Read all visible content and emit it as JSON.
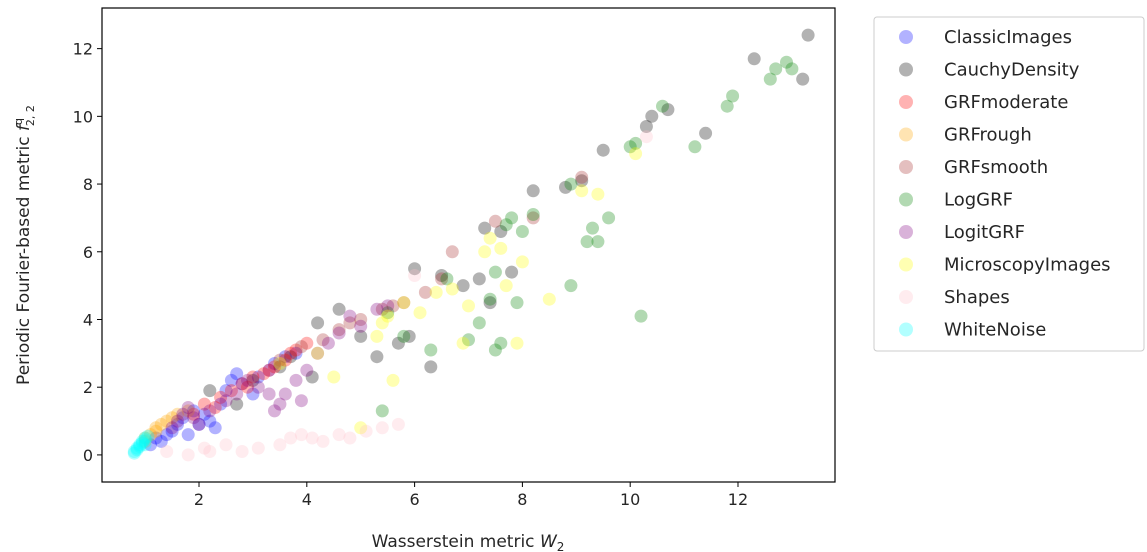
{
  "chart_data": {
    "type": "scatter",
    "xlabel_text": "Wasserstein metric ",
    "xlabel_symbol": "W",
    "xlabel_sub": "2",
    "ylabel_text": "Periodic Fourier-based metric ",
    "ylabel_symbol": "f",
    "ylabel_sup": "q",
    "ylabel_sub": "2, 2",
    "xlim": [
      0.2,
      13.8
    ],
    "ylim": [
      -0.8,
      13.2
    ],
    "xticks": [
      2,
      4,
      6,
      8,
      10,
      12
    ],
    "yticks": [
      0,
      2,
      4,
      6,
      8,
      10,
      12
    ],
    "xtick_labels": [
      "2",
      "4",
      "6",
      "8",
      "10",
      "12"
    ],
    "ytick_labels": [
      "0",
      "2",
      "4",
      "6",
      "8",
      "10",
      "12"
    ],
    "legend_position": "outside-right",
    "marker_alpha": 0.3,
    "series": [
      {
        "name": "ClassicImages",
        "color": "#0000ff",
        "points": [
          [
            1.1,
            0.3
          ],
          [
            1.2,
            0.5
          ],
          [
            1.3,
            0.4
          ],
          [
            1.5,
            0.7
          ],
          [
            1.6,
            0.9
          ],
          [
            1.7,
            1.1
          ],
          [
            1.8,
            0.6
          ],
          [
            1.9,
            1.3
          ],
          [
            2.0,
            0.9
          ],
          [
            2.1,
            1.2
          ],
          [
            2.3,
            0.8
          ],
          [
            2.4,
            1.5
          ],
          [
            2.5,
            1.9
          ],
          [
            2.6,
            2.2
          ],
          [
            2.7,
            2.4
          ],
          [
            2.8,
            2.1
          ],
          [
            3.0,
            1.8
          ],
          [
            3.1,
            2.3
          ],
          [
            3.3,
            2.5
          ],
          [
            3.4,
            2.7
          ],
          [
            3.6,
            2.9
          ],
          [
            3.8,
            3.0
          ],
          [
            2.2,
            1.0
          ],
          [
            1.4,
            0.6
          ]
        ]
      },
      {
        "name": "CauchyDensity",
        "color": "#000000",
        "points": [
          [
            2.2,
            1.9
          ],
          [
            2.7,
            1.5
          ],
          [
            3.0,
            2.2
          ],
          [
            3.5,
            2.6
          ],
          [
            3.7,
            2.9
          ],
          [
            4.1,
            2.3
          ],
          [
            4.2,
            3.9
          ],
          [
            4.6,
            4.3
          ],
          [
            5.0,
            3.5
          ],
          [
            5.3,
            2.9
          ],
          [
            5.7,
            3.3
          ],
          [
            5.9,
            3.5
          ],
          [
            6.0,
            5.5
          ],
          [
            6.3,
            2.6
          ],
          [
            6.5,
            5.3
          ],
          [
            6.9,
            5.0
          ],
          [
            7.2,
            5.2
          ],
          [
            7.3,
            6.7
          ],
          [
            7.4,
            4.5
          ],
          [
            7.6,
            6.6
          ],
          [
            7.8,
            5.4
          ],
          [
            8.2,
            7.8
          ],
          [
            8.8,
            7.9
          ],
          [
            9.1,
            8.1
          ],
          [
            9.5,
            9.0
          ],
          [
            10.3,
            9.7
          ],
          [
            10.4,
            10.0
          ],
          [
            10.7,
            10.2
          ],
          [
            11.4,
            9.5
          ],
          [
            12.3,
            11.7
          ],
          [
            13.2,
            11.1
          ],
          [
            13.3,
            12.4
          ]
        ]
      },
      {
        "name": "GRFmoderate",
        "color": "#ff0000",
        "points": [
          [
            1.9,
            1.2
          ],
          [
            2.1,
            1.5
          ],
          [
            2.4,
            1.7
          ],
          [
            2.6,
            1.9
          ],
          [
            2.8,
            2.1
          ],
          [
            3.0,
            2.3
          ],
          [
            3.2,
            2.4
          ],
          [
            3.4,
            2.6
          ],
          [
            3.6,
            2.8
          ],
          [
            3.8,
            3.1
          ],
          [
            4.0,
            3.3
          ],
          [
            2.3,
            1.4
          ],
          [
            2.9,
            2.0
          ],
          [
            3.3,
            2.5
          ],
          [
            3.7,
            3.0
          ]
        ]
      },
      {
        "name": "GRFrough",
        "color": "#ffa500",
        "points": [
          [
            1.0,
            0.4
          ],
          [
            1.1,
            0.6
          ],
          [
            1.2,
            0.7
          ],
          [
            1.3,
            0.9
          ],
          [
            1.4,
            1.0
          ],
          [
            1.5,
            1.1
          ],
          [
            1.6,
            1.2
          ],
          [
            1.8,
            1.3
          ],
          [
            1.2,
            0.8
          ],
          [
            1.0,
            0.5
          ]
        ]
      },
      {
        "name": "GRFsmooth",
        "color": "#a52a2a",
        "points": [
          [
            3.5,
            2.8
          ],
          [
            3.9,
            3.2
          ],
          [
            4.3,
            3.4
          ],
          [
            4.6,
            3.7
          ],
          [
            5.0,
            4.0
          ],
          [
            5.4,
            4.3
          ],
          [
            5.8,
            4.5
          ],
          [
            6.2,
            4.8
          ],
          [
            6.5,
            5.2
          ],
          [
            6.7,
            6.0
          ],
          [
            7.5,
            6.9
          ],
          [
            8.2,
            7.0
          ],
          [
            9.1,
            8.2
          ],
          [
            4.8,
            3.9
          ],
          [
            5.6,
            4.4
          ]
        ]
      },
      {
        "name": "LogGRF",
        "color": "#008000",
        "points": [
          [
            5.4,
            1.3
          ],
          [
            5.5,
            4.2
          ],
          [
            5.8,
            3.5
          ],
          [
            6.3,
            3.1
          ],
          [
            6.6,
            5.2
          ],
          [
            7.0,
            3.4
          ],
          [
            7.2,
            3.9
          ],
          [
            7.4,
            4.6
          ],
          [
            7.5,
            5.4
          ],
          [
            7.5,
            3.1
          ],
          [
            7.6,
            3.3
          ],
          [
            7.7,
            6.8
          ],
          [
            7.9,
            4.5
          ],
          [
            8.0,
            6.6
          ],
          [
            8.2,
            7.1
          ],
          [
            8.9,
            5.0
          ],
          [
            8.9,
            8.0
          ],
          [
            9.2,
            6.3
          ],
          [
            9.3,
            6.7
          ],
          [
            9.4,
            6.3
          ],
          [
            9.6,
            7.0
          ],
          [
            10.0,
            9.1
          ],
          [
            10.1,
            9.2
          ],
          [
            10.2,
            4.1
          ],
          [
            10.6,
            10.3
          ],
          [
            11.2,
            9.1
          ],
          [
            11.8,
            10.3
          ],
          [
            11.9,
            10.6
          ],
          [
            12.6,
            11.1
          ],
          [
            12.7,
            11.4
          ],
          [
            12.9,
            11.6
          ],
          [
            13.0,
            11.4
          ],
          [
            7.8,
            7.0
          ]
        ]
      },
      {
        "name": "LogitGRF",
        "color": "#800080",
        "points": [
          [
            1.5,
            0.8
          ],
          [
            1.6,
            1.0
          ],
          [
            1.7,
            1.2
          ],
          [
            1.8,
            1.4
          ],
          [
            1.9,
            1.1
          ],
          [
            2.0,
            0.9
          ],
          [
            2.2,
            1.3
          ],
          [
            2.5,
            1.6
          ],
          [
            2.7,
            1.8
          ],
          [
            2.9,
            2.2
          ],
          [
            3.1,
            2.0
          ],
          [
            3.3,
            1.8
          ],
          [
            3.4,
            1.3
          ],
          [
            3.5,
            1.5
          ],
          [
            3.6,
            1.8
          ],
          [
            3.8,
            2.2
          ],
          [
            3.9,
            1.6
          ],
          [
            4.0,
            2.5
          ],
          [
            4.2,
            3.0
          ],
          [
            4.4,
            3.3
          ],
          [
            4.6,
            3.6
          ],
          [
            4.8,
            4.1
          ],
          [
            5.0,
            3.8
          ],
          [
            5.3,
            4.3
          ],
          [
            5.5,
            4.4
          ]
        ]
      },
      {
        "name": "MicroscopyImages",
        "color": "#ffff00",
        "points": [
          [
            3.5,
            2.7
          ],
          [
            4.2,
            3.0
          ],
          [
            4.5,
            2.3
          ],
          [
            5.0,
            0.8
          ],
          [
            5.3,
            3.5
          ],
          [
            5.4,
            3.9
          ],
          [
            5.5,
            4.1
          ],
          [
            5.6,
            2.2
          ],
          [
            5.8,
            4.5
          ],
          [
            6.1,
            4.2
          ],
          [
            6.4,
            4.8
          ],
          [
            6.7,
            4.9
          ],
          [
            6.9,
            3.3
          ],
          [
            7.0,
            4.4
          ],
          [
            7.3,
            6.0
          ],
          [
            7.4,
            6.4
          ],
          [
            7.6,
            6.1
          ],
          [
            7.7,
            5.0
          ],
          [
            7.9,
            3.3
          ],
          [
            8.0,
            5.7
          ],
          [
            8.5,
            4.6
          ],
          [
            9.1,
            7.8
          ],
          [
            9.4,
            7.7
          ],
          [
            10.1,
            8.9
          ]
        ]
      },
      {
        "name": "Shapes",
        "color": "#ffc0cb",
        "points": [
          [
            1.4,
            0.1
          ],
          [
            1.8,
            0.0
          ],
          [
            2.1,
            0.2
          ],
          [
            2.5,
            0.3
          ],
          [
            2.8,
            0.1
          ],
          [
            3.1,
            0.2
          ],
          [
            3.5,
            0.3
          ],
          [
            3.7,
            0.5
          ],
          [
            3.9,
            0.6
          ],
          [
            4.1,
            0.5
          ],
          [
            4.3,
            0.4
          ],
          [
            4.6,
            0.6
          ],
          [
            4.8,
            0.5
          ],
          [
            5.1,
            0.7
          ],
          [
            5.4,
            0.8
          ],
          [
            5.7,
            0.9
          ],
          [
            2.2,
            0.1
          ],
          [
            6.0,
            5.3
          ],
          [
            10.3,
            9.4
          ]
        ]
      },
      {
        "name": "WhiteNoise",
        "color": "#00ffff",
        "points": [
          [
            0.8,
            0.1
          ],
          [
            0.85,
            0.2
          ],
          [
            0.9,
            0.3
          ],
          [
            0.95,
            0.35
          ],
          [
            1.0,
            0.45
          ],
          [
            0.85,
            0.15
          ],
          [
            0.9,
            0.25
          ],
          [
            1.0,
            0.5
          ],
          [
            1.05,
            0.55
          ],
          [
            0.8,
            0.05
          ],
          [
            0.95,
            0.4
          ],
          [
            1.0,
            0.3
          ]
        ]
      }
    ]
  }
}
